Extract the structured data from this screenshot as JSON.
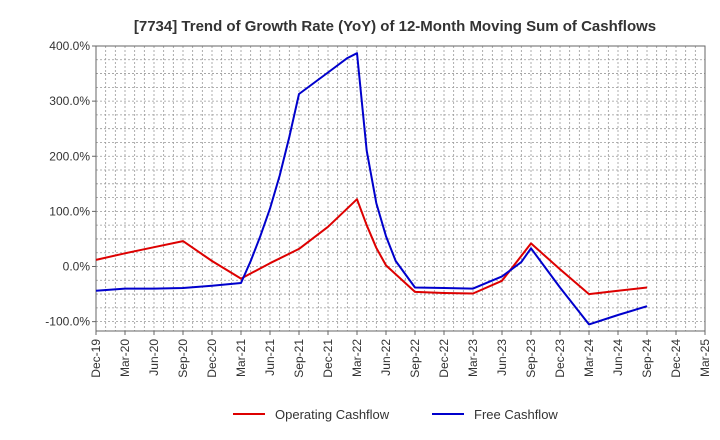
{
  "chart_data": {
    "type": "line",
    "title": "[7734]  Trend of Growth Rate (YoY) of 12-Month Moving Sum of Cashflows",
    "xlabel": "",
    "ylabel": "",
    "categories": [
      "Dec-19",
      "Mar-20",
      "Jun-20",
      "Sep-20",
      "Dec-20",
      "Mar-21",
      "Jun-21",
      "Sep-21",
      "Dec-21",
      "Mar-22",
      "Jun-22",
      "Sep-22",
      "Dec-22",
      "Mar-23",
      "Jun-23",
      "Sep-23",
      "Dec-23",
      "Mar-24",
      "Jun-24",
      "Sep-24",
      "Dec-24",
      "Mar-25"
    ],
    "x_minor_per_major": 3,
    "y_ticks": [
      -100,
      0,
      100,
      200,
      300,
      400
    ],
    "y_tick_labels": [
      "-100.0%",
      "0.0%",
      "100.0%",
      "200.0%",
      "300.0%",
      "400.0%"
    ],
    "ylim": [
      -117,
      400
    ],
    "grid": true,
    "legend_position": "bottom-center",
    "series": [
      {
        "name": "Operating Cashflow",
        "color": "#dd0000",
        "points": [
          {
            "x": 0,
            "y": 12
          },
          {
            "x": 1,
            "y": 24
          },
          {
            "x": 2,
            "y": 35
          },
          {
            "x": 3,
            "y": 46
          },
          {
            "x": 4,
            "y": 10
          },
          {
            "x": 5,
            "y": -22
          },
          {
            "x": 6,
            "y": 6
          },
          {
            "x": 7,
            "y": 32
          },
          {
            "x": 8,
            "y": 72
          },
          {
            "x": 9,
            "y": 122
          },
          {
            "x": 9.333,
            "y": 75
          },
          {
            "x": 9.667,
            "y": 34
          },
          {
            "x": 10,
            "y": 2
          },
          {
            "x": 11,
            "y": -46
          },
          {
            "x": 12,
            "y": -48
          },
          {
            "x": 13,
            "y": -49
          },
          {
            "x": 14,
            "y": -26
          },
          {
            "x": 15,
            "y": 42
          },
          {
            "x": 16,
            "y": -5
          },
          {
            "x": 17,
            "y": -50
          },
          {
            "x": 18,
            "y": -44
          },
          {
            "x": 19,
            "y": -38
          }
        ]
      },
      {
        "name": "Free Cashflow",
        "color": "#0000cc",
        "points": [
          {
            "x": 0,
            "y": -44
          },
          {
            "x": 1,
            "y": -40
          },
          {
            "x": 2,
            "y": -40
          },
          {
            "x": 3,
            "y": -39
          },
          {
            "x": 4,
            "y": -35
          },
          {
            "x": 5,
            "y": -30
          },
          {
            "x": 5.333,
            "y": 10
          },
          {
            "x": 5.667,
            "y": 55
          },
          {
            "x": 6,
            "y": 105
          },
          {
            "x": 6.333,
            "y": 165
          },
          {
            "x": 6.667,
            "y": 235
          },
          {
            "x": 7,
            "y": 313
          },
          {
            "x": 8,
            "y": 352
          },
          {
            "x": 8.667,
            "y": 378
          },
          {
            "x": 9,
            "y": 387
          },
          {
            "x": 9.333,
            "y": 210
          },
          {
            "x": 9.667,
            "y": 115
          },
          {
            "x": 10,
            "y": 55
          },
          {
            "x": 10.333,
            "y": 10
          },
          {
            "x": 11,
            "y": -38
          },
          {
            "x": 12,
            "y": -39
          },
          {
            "x": 13,
            "y": -40
          },
          {
            "x": 14,
            "y": -18
          },
          {
            "x": 14.667,
            "y": 8
          },
          {
            "x": 15,
            "y": 33
          },
          {
            "x": 16,
            "y": -38
          },
          {
            "x": 17,
            "y": -105
          },
          {
            "x": 18,
            "y": -88
          },
          {
            "x": 19,
            "y": -72
          }
        ]
      }
    ]
  }
}
